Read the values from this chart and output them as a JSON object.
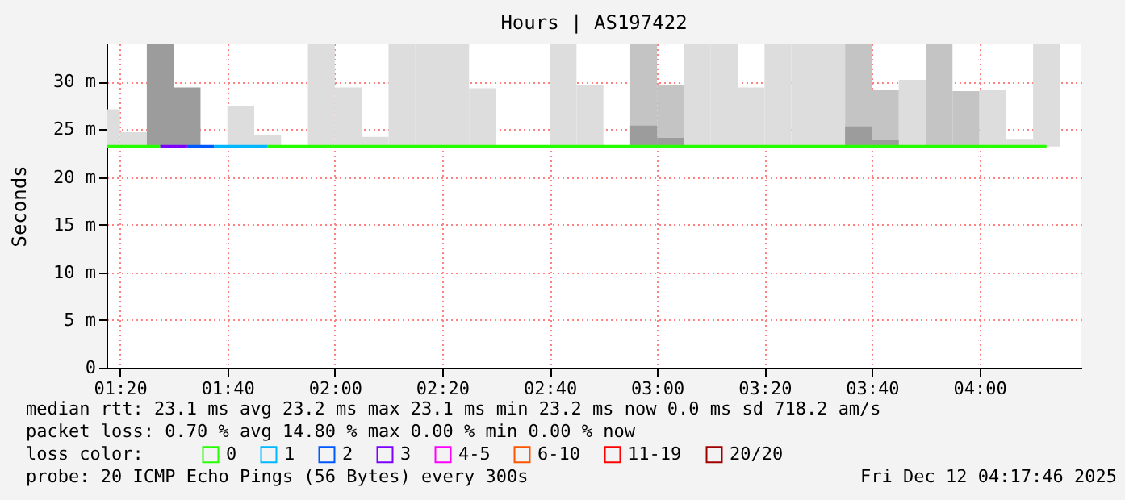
{
  "chart_data": {
    "type": "bar",
    "title": "Hours | AS197422",
    "ylabel": "Seconds",
    "legend_title": "loss color:",
    "legend": "bottom",
    "grid": true,
    "x": [
      "2025-12-12T01:17:30",
      "2025-12-12T01:22:30",
      "2025-12-12T01:27:30",
      "2025-12-12T01:32:30",
      "2025-12-12T01:37:30",
      "2025-12-12T01:42:30",
      "2025-12-12T01:47:30",
      "2025-12-12T01:52:30",
      "2025-12-12T01:57:30",
      "2025-12-12T02:02:30",
      "2025-12-12T02:07:30",
      "2025-12-12T02:12:30",
      "2025-12-12T02:17:30",
      "2025-12-12T02:22:30",
      "2025-12-12T02:27:30",
      "2025-12-12T02:32:30",
      "2025-12-12T02:37:30",
      "2025-12-12T02:42:30",
      "2025-12-12T02:47:30",
      "2025-12-12T02:52:30",
      "2025-12-12T02:57:30",
      "2025-12-12T03:02:30",
      "2025-12-12T03:07:30",
      "2025-12-12T03:12:30",
      "2025-12-12T03:17:30",
      "2025-12-12T03:22:30",
      "2025-12-12T03:27:30",
      "2025-12-12T03:32:30",
      "2025-12-12T03:37:30",
      "2025-12-12T03:42:30",
      "2025-12-12T03:47:30",
      "2025-12-12T03:52:30",
      "2025-12-12T03:57:30",
      "2025-12-12T04:02:30",
      "2025-12-12T04:07:30",
      "2025-12-12T04:12:30"
    ],
    "series": [
      {
        "color": "#dddddd",
        "base": [
          23.2,
          23.2,
          null,
          null,
          null,
          23.2,
          23.2,
          null,
          23.2,
          23.2,
          23.2,
          23.2,
          23.2,
          23.2,
          23.2,
          null,
          null,
          23.2,
          23.2,
          null,
          null,
          null,
          23.2,
          23.2,
          23.2,
          23.2,
          23.2,
          23.2,
          null,
          null,
          23.2,
          null,
          null,
          23.2,
          23.2,
          23.2
        ],
        "values": [
          3.9,
          1.5,
          null,
          null,
          null,
          4.2,
          1.2,
          null,
          10.8,
          6.2,
          1.0,
          10.8,
          10.8,
          10.8,
          6.1,
          null,
          null,
          10.8,
          6.4,
          null,
          null,
          null,
          10.8,
          10.8,
          6.2,
          10.8,
          10.8,
          10.8,
          null,
          null,
          7.0,
          null,
          null,
          5.9,
          0.8,
          10.8
        ]
      },
      {
        "color": "#c4c4c4",
        "base": [
          null,
          null,
          null,
          null,
          null,
          null,
          null,
          null,
          null,
          null,
          null,
          null,
          null,
          null,
          null,
          null,
          null,
          null,
          null,
          null,
          23.2,
          23.2,
          null,
          null,
          null,
          null,
          null,
          null,
          23.2,
          23.2,
          null,
          23.2,
          23.2,
          null,
          null,
          null
        ],
        "values": [
          null,
          null,
          null,
          null,
          null,
          null,
          null,
          null,
          null,
          null,
          null,
          null,
          null,
          null,
          null,
          null,
          null,
          null,
          null,
          null,
          10.8,
          6.4,
          null,
          null,
          null,
          null,
          null,
          null,
          10.8,
          5.9,
          null,
          10.8,
          5.8,
          null,
          null,
          null
        ]
      },
      {
        "color": "#9c9c9c",
        "base": [
          null,
          null,
          23.2,
          23.2,
          null,
          null,
          null,
          null,
          null,
          null,
          null,
          null,
          null,
          null,
          null,
          null,
          null,
          null,
          null,
          null,
          23.2,
          23.2,
          null,
          null,
          null,
          null,
          null,
          null,
          23.2,
          23.2,
          null,
          null,
          null,
          null,
          null,
          null
        ],
        "values": [
          null,
          null,
          10.8,
          6.2,
          null,
          null,
          null,
          null,
          null,
          null,
          null,
          null,
          null,
          null,
          null,
          null,
          null,
          null,
          null,
          null,
          2.2,
          0.9,
          null,
          null,
          null,
          null,
          null,
          null,
          2.1,
          0.7,
          null,
          null,
          null,
          null,
          null,
          null
        ]
      },
      {
        "type": "line",
        "name": "0",
        "color": "#26ff00",
        "values": [
          23.2,
          23.2,
          23.2,
          null,
          null,
          null,
          23.2,
          23.2,
          23.2,
          23.2,
          23.2,
          23.2,
          23.2,
          23.2,
          23.2,
          23.2,
          23.2,
          23.2,
          23.2,
          23.2,
          23.2,
          23.2,
          23.2,
          23.2,
          23.2,
          23.2,
          23.2,
          23.2,
          23.2,
          23.2,
          23.2,
          23.2,
          23.2,
          23.2,
          23.2,
          23.2
        ]
      },
      {
        "type": "line",
        "name": "1",
        "color": "#00b8ff",
        "values": [
          null,
          null,
          null,
          null,
          23.2,
          23.2,
          23.2,
          null,
          null,
          null,
          null,
          null,
          null,
          null,
          null,
          null,
          null,
          null,
          null,
          null,
          null,
          null,
          null,
          null,
          null,
          null,
          null,
          null,
          null,
          null,
          null,
          null,
          null,
          null,
          null,
          null
        ]
      },
      {
        "type": "line",
        "name": "2",
        "color": "#0059ff",
        "values": [
          null,
          null,
          null,
          23.2,
          23.2,
          null,
          null,
          null,
          null,
          null,
          null,
          null,
          null,
          null,
          null,
          null,
          null,
          null,
          null,
          null,
          null,
          null,
          null,
          null,
          null,
          null,
          null,
          null,
          null,
          null,
          null,
          null,
          null,
          null,
          null,
          null
        ]
      },
      {
        "type": "line",
        "name": "3",
        "color": "#7e00ff",
        "values": [
          null,
          null,
          23.2,
          23.2,
          null,
          null,
          null,
          null,
          null,
          null,
          null,
          null,
          null,
          null,
          null,
          null,
          null,
          null,
          null,
          null,
          null,
          null,
          null,
          null,
          null,
          null,
          null,
          null,
          null,
          null,
          null,
          null,
          null,
          null,
          null,
          null
        ]
      },
      {
        "type": "line",
        "name": "4-5",
        "color": "#ff00ff",
        "values": [
          null,
          null,
          null,
          null,
          null,
          null,
          null,
          null,
          null,
          null,
          null,
          null,
          null,
          null,
          null,
          null,
          null,
          null,
          null,
          null,
          null,
          null,
          null,
          null,
          null,
          null,
          null,
          null,
          null,
          null,
          null,
          null,
          null,
          null,
          null,
          null
        ]
      },
      {
        "type": "line",
        "name": "6-10",
        "color": "#ff5500",
        "values": [
          null,
          null,
          null,
          null,
          null,
          null,
          null,
          null,
          null,
          null,
          null,
          null,
          null,
          null,
          null,
          null,
          null,
          null,
          null,
          null,
          null,
          null,
          null,
          null,
          null,
          null,
          null,
          null,
          null,
          null,
          null,
          null,
          null,
          null,
          null,
          null
        ]
      },
      {
        "type": "line",
        "name": "11-19",
        "color": "#ff0000",
        "values": [
          null,
          null,
          null,
          null,
          null,
          null,
          null,
          null,
          null,
          null,
          null,
          null,
          null,
          null,
          null,
          null,
          null,
          null,
          null,
          null,
          null,
          null,
          null,
          null,
          null,
          null,
          null,
          null,
          null,
          null,
          null,
          null,
          null,
          null,
          null,
          null
        ]
      },
      {
        "type": "line",
        "name": "20/20",
        "color": "#a10000",
        "values": [
          null,
          null,
          null,
          null,
          null,
          null,
          null,
          null,
          null,
          null,
          null,
          null,
          null,
          null,
          null,
          null,
          null,
          null,
          null,
          null,
          null,
          null,
          null,
          null,
          null,
          null,
          null,
          null,
          null,
          null,
          null,
          null,
          null,
          null,
          null,
          null
        ]
      }
    ],
    "xlim": [
      "2025-12-12T01:17:30",
      "2025-12-12T04:19"
    ],
    "xticks": [
      {
        "value": "2025-12-12T01:20",
        "label": "01:20"
      },
      {
        "value": "2025-12-12T01:40",
        "label": "01:40"
      },
      {
        "value": "2025-12-12T02:00",
        "label": "02:00"
      },
      {
        "value": "2025-12-12T02:20",
        "label": "02:20"
      },
      {
        "value": "2025-12-12T02:40",
        "label": "02:40"
      },
      {
        "value": "2025-12-12T03:00",
        "label": "03:00"
      },
      {
        "value": "2025-12-12T03:20",
        "label": "03:20"
      },
      {
        "value": "2025-12-12T03:40",
        "label": "03:40"
      },
      {
        "value": "2025-12-12T04:00",
        "label": "04:00"
      }
    ],
    "ylim": [
      0,
      34
    ],
    "yticks": [
      0,
      {
        "value": 5,
        "label": "5 m"
      },
      {
        "value": 10,
        "label": "10 m"
      },
      {
        "value": 15,
        "label": "15 m"
      },
      {
        "value": 20,
        "label": "20 m"
      },
      {
        "value": 25,
        "label": "25 m"
      },
      {
        "value": 30,
        "label": "30 m"
      }
    ],
    "annotations": [
      "median rtt:  23.1 ms avg  23.2 ms max  23.1 ms min  23.2 ms now  0.0 ms sd  718.2   am/s",
      "packet loss: 0.70 % avg  14.80 % max  0.00 % min  0.00 % now",
      "probe:       20 ICMP Echo Pings (56 Bytes) every 300s",
      "Fri Dec 12 04:17:46 2025"
    ]
  }
}
